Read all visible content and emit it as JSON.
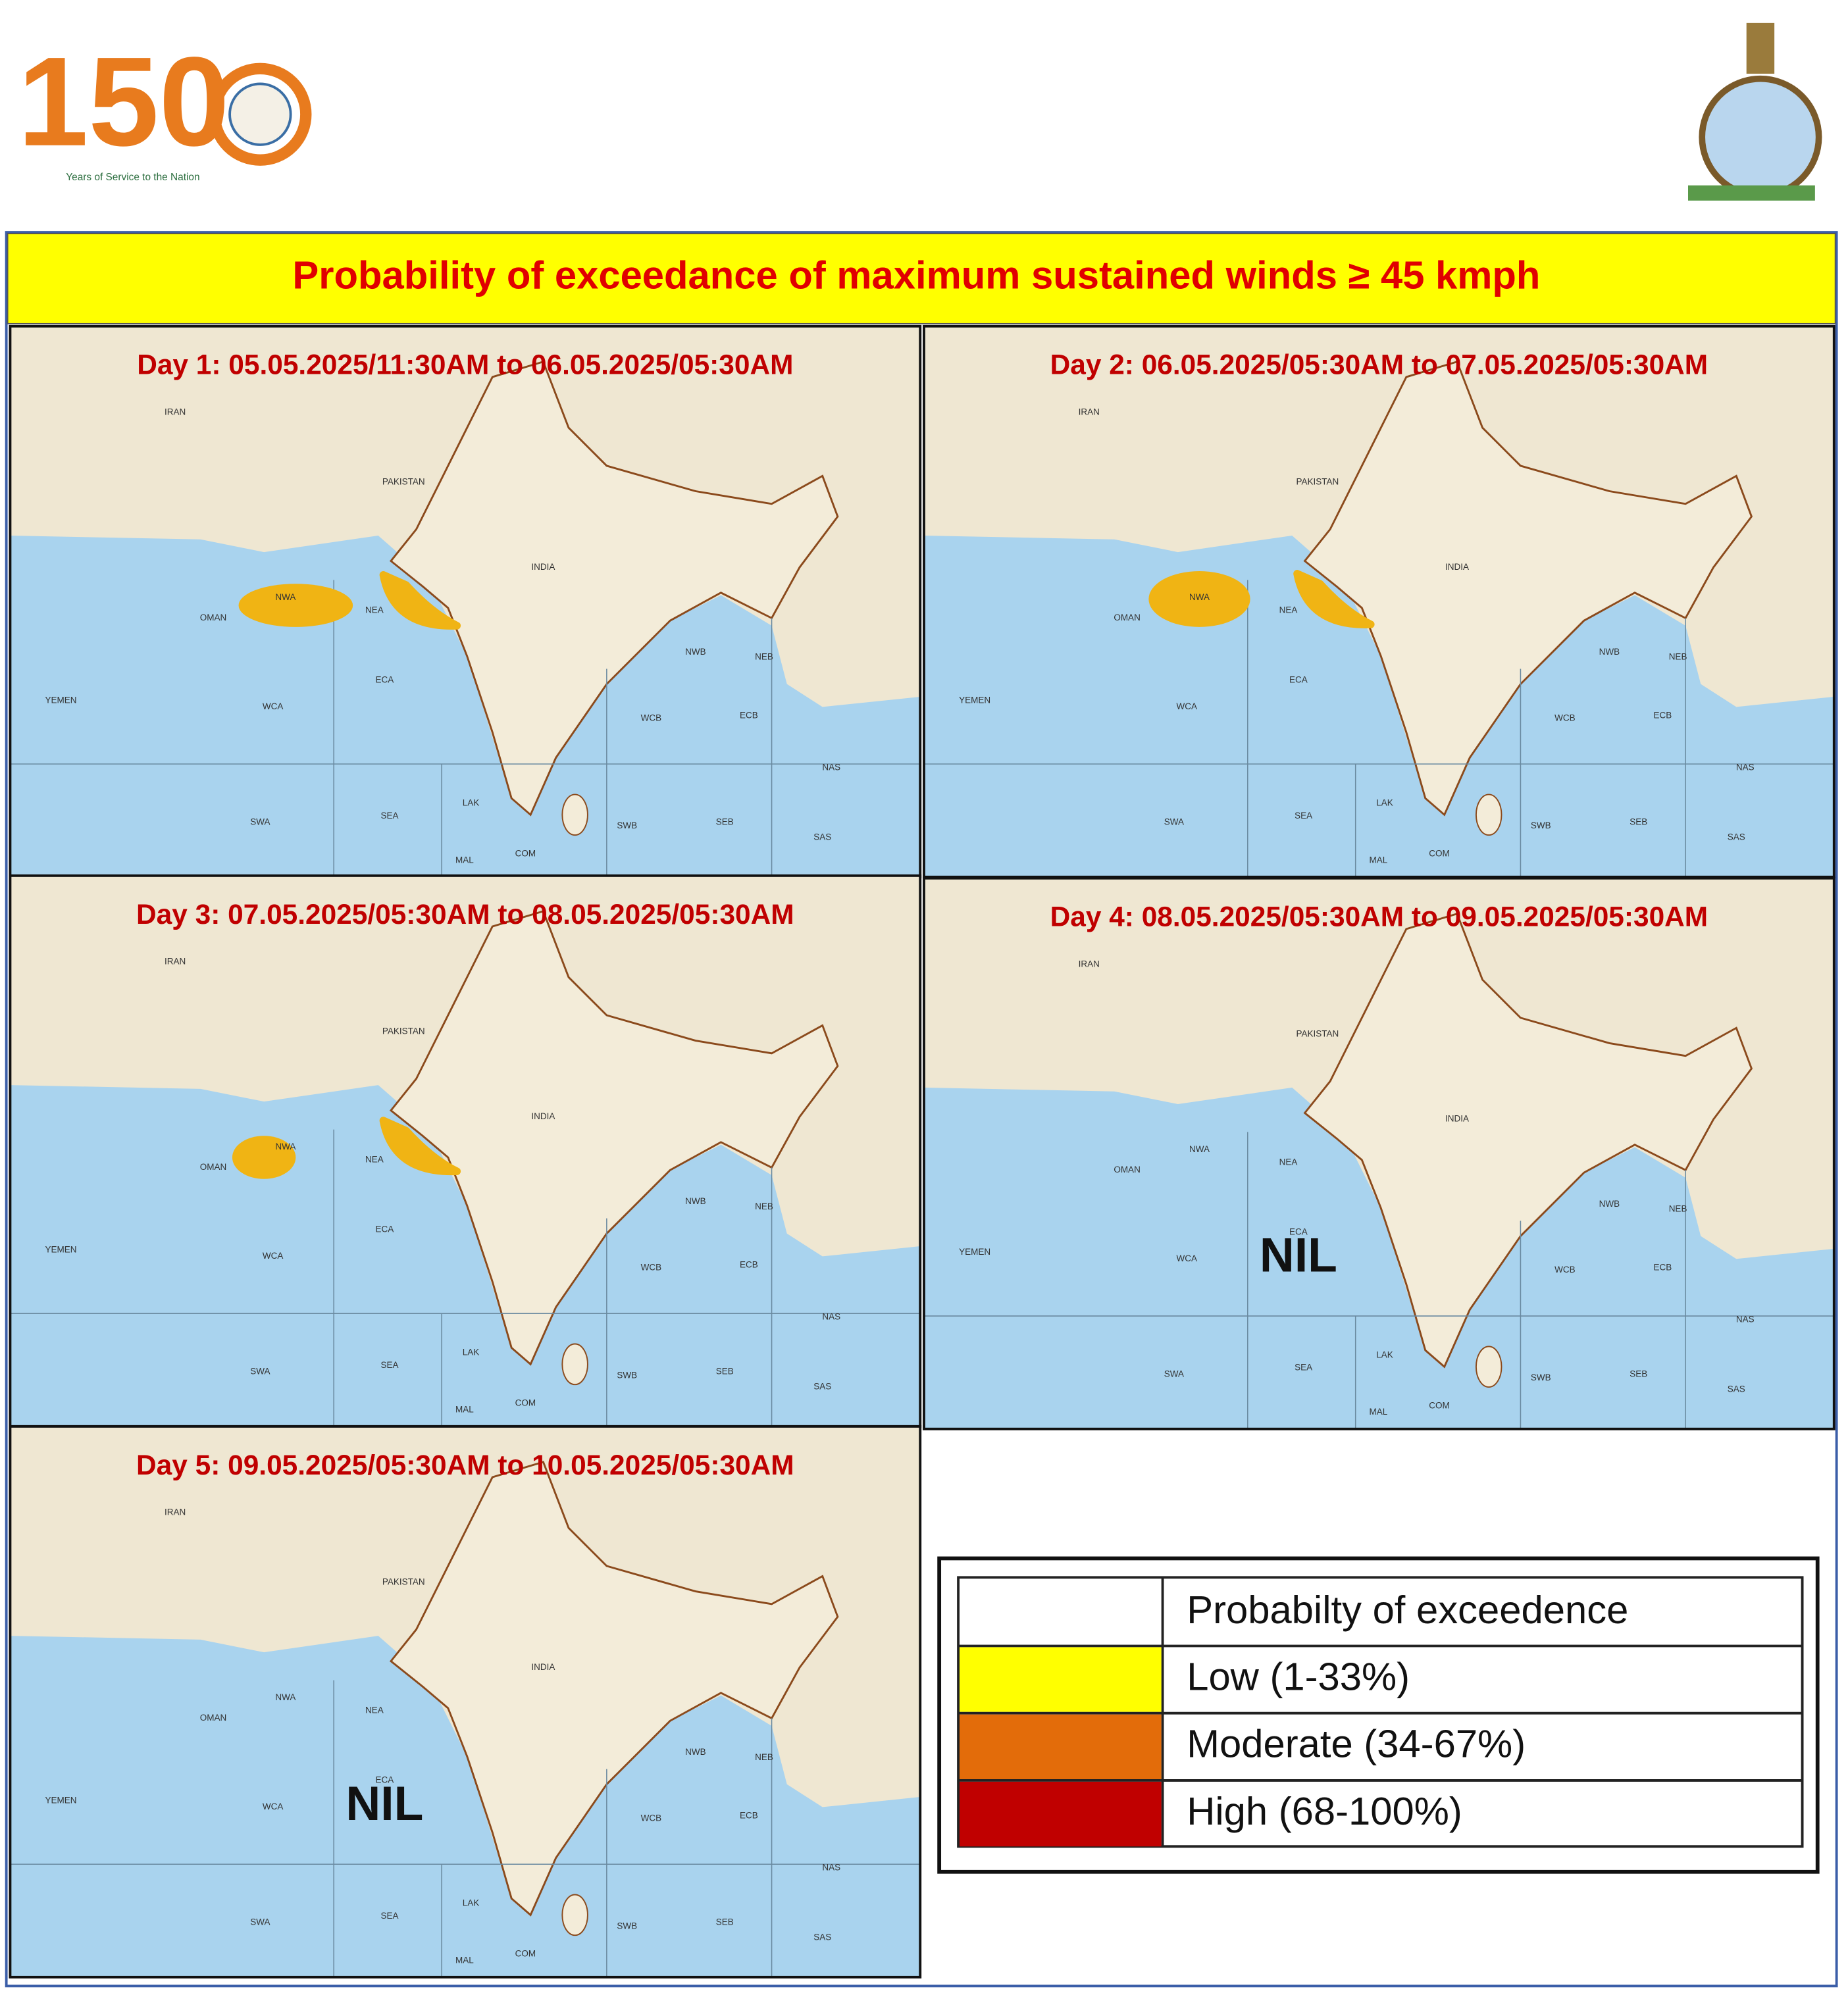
{
  "header": {
    "logo_number": "150",
    "logo_caption": "Years of Service to the Nation"
  },
  "title": "Probability  of exceedance of maximum sustained winds ≥ 45 kmph",
  "panels": [
    {
      "label": "Day 1: 05.05.2025/11:30AM  to 06.05.2025/05:30AM"
    },
    {
      "label": "Day 2: 06.05.2025/05:30AM  to 07.05.2025/05:30AM"
    },
    {
      "label": "Day 3:  07.05.2025/05:30AM  to 08.05.2025/05:30AM"
    },
    {
      "label": "Day 4: 08.05.2025/05:30AM  to 09.05.2025/05:30AM",
      "status": "NIL"
    },
    {
      "label": "Day 5: 09.05.2025/05:30AM  to 10.05.2025/05:30AM",
      "status": "NIL"
    }
  ],
  "map_labels": [
    "NWA",
    "NEA",
    "ECA",
    "WCA",
    "WCB",
    "ECB",
    "NWB",
    "NEB",
    "NAS",
    "SAS",
    "SWA",
    "SEA",
    "LAK",
    "MAL",
    "COM",
    "SWB",
    "SEB",
    "PAKISTAN",
    "IRAN",
    "OMAN",
    "YEMEN",
    "INDIA"
  ],
  "legend": {
    "header": "Probabilty of exceedence",
    "rows": [
      {
        "label": "Low (1-33%)",
        "color": "#ffff00"
      },
      {
        "label": "Moderate (34-67%)",
        "color": "#e36c0a"
      },
      {
        "label": "High (68-100%)",
        "color": "#c00000"
      }
    ]
  }
}
